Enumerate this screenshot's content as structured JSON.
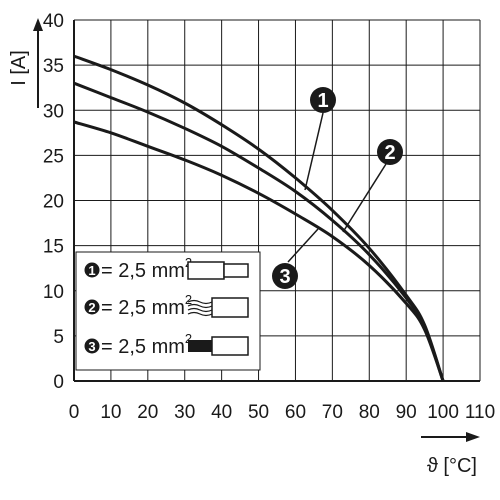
{
  "chart_data": {
    "type": "line",
    "title": "",
    "xlabel": "ϑ [°C]",
    "ylabel": "I [A]",
    "xlim": [
      0,
      110
    ],
    "ylim": [
      0,
      40
    ],
    "x_ticks": [
      0,
      10,
      20,
      30,
      40,
      50,
      60,
      70,
      80,
      90,
      100,
      110
    ],
    "y_ticks": [
      0,
      5,
      10,
      15,
      20,
      25,
      30,
      35,
      40
    ],
    "grid": true,
    "series": [
      {
        "name": "1",
        "x": [
          0,
          10,
          20,
          30,
          40,
          50,
          60,
          70,
          80,
          90,
          95,
          100
        ],
        "values": [
          36.0,
          34.5,
          32.8,
          30.8,
          28.4,
          25.7,
          22.5,
          18.9,
          14.7,
          9.5,
          6.2,
          0
        ]
      },
      {
        "name": "2",
        "x": [
          0,
          10,
          20,
          30,
          40,
          50,
          60,
          70,
          80,
          90,
          95,
          100
        ],
        "values": [
          33.0,
          31.4,
          29.8,
          28.0,
          26.0,
          23.6,
          21.0,
          17.8,
          14.0,
          9.2,
          6.0,
          0
        ]
      },
      {
        "name": "3",
        "x": [
          0,
          10,
          20,
          30,
          40,
          50,
          60,
          70,
          80,
          90,
          95,
          100
        ],
        "values": [
          28.7,
          27.5,
          26.0,
          24.5,
          22.8,
          20.8,
          18.5,
          16.0,
          12.8,
          8.6,
          5.7,
          0
        ]
      }
    ],
    "legend": {
      "position": "bottom-left",
      "entries": [
        {
          "number": "1",
          "label": "= 2,5 mm",
          "superscript": "2",
          "icon": "ferrule-icon"
        },
        {
          "number": "2",
          "label": "= 2,5 mm",
          "superscript": "2",
          "icon": "stranded-wire-icon"
        },
        {
          "number": "3",
          "label": "= 2,5 mm",
          "superscript": "2",
          "icon": "insulated-ferrule-icon"
        }
      ]
    },
    "colors": {
      "line": "#1a1a1a",
      "grid": "#1a1a1a",
      "badge": "#1a1a1a"
    }
  }
}
